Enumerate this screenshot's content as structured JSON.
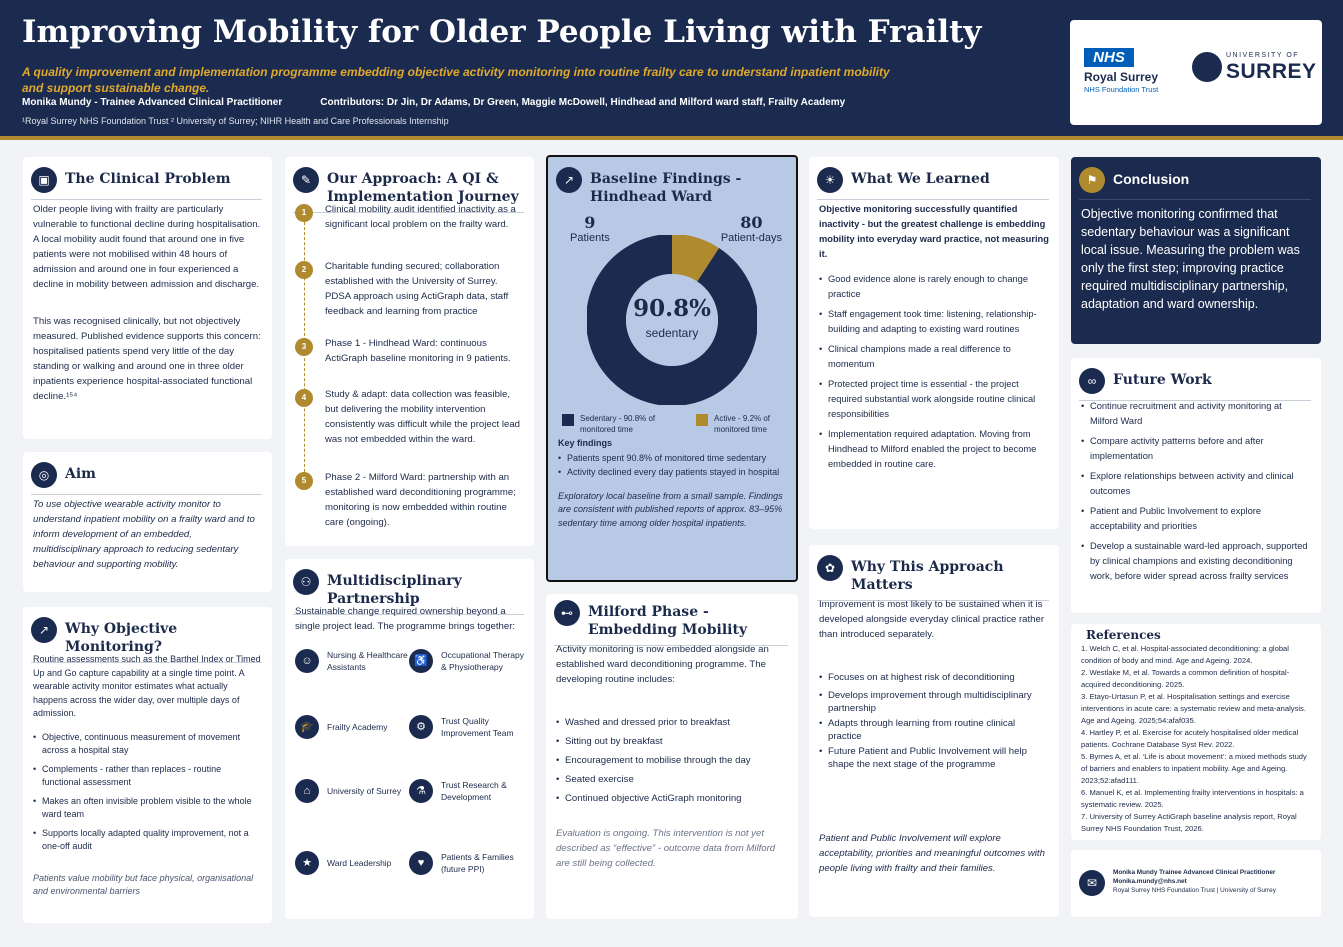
{
  "header": {
    "title": "Improving Mobility for Older People Living with Frailty",
    "subtitle": "A quality improvement and implementation programme embedding objective activity monitoring into routine frailty care to understand inpatient mobility and support sustainable change.",
    "author": "Monika Mundy - Trainee Advanced Clinical Practitioner",
    "contributors": "Contributors: Dr Jin, Dr Adams, Dr Green, Maggie McDowell, Hindhead and Milford ward staff, Frailty Academy",
    "affiliations": "¹Royal Surrey NHS Foundation Trust    ² University of Surrey;  NIHR Health and Care Professionals Internship",
    "logos": {
      "nhs_badge": "NHS",
      "nhs_name": "Royal Surrey",
      "nhs_trust": "NHS Foundation Trust",
      "uni_of": "UNIVERSITY OF",
      "uni_name": "SURREY"
    }
  },
  "clinical_problem": {
    "title": "The Clinical Problem",
    "p1": "Older people living with frailty are particularly vulnerable to functional decline during hospitalisation. A local mobility audit found that around one in five patients were not mobilised within 48 hours of admission and around one in four experienced a decline in mobility between admission and discharge.",
    "p2": "This was recognised clinically, but not objectively measured. Published evidence supports this concern: hospitalised patients spend very little of the day standing or walking and around one in three older inpatients experience hospital-associated functional decline.¹⁵⁴"
  },
  "aim": {
    "title": "Aim",
    "text": "To use objective wearable activity monitor to understand inpatient mobility on a frailty ward and to inform development of an embedded, multidisciplinary approach to reducing sedentary behaviour and supporting mobility."
  },
  "why_monitoring": {
    "title": "Why Objective Monitoring?",
    "intro": "Routine assessments such as the Barthel Index or Timed Up and Go capture capability at a single time point. A wearable activity monitor estimates what actually happens across the wider day, over multiple days of admission.",
    "bullets": [
      "Objective, continuous measurement of movement across a hospital stay",
      "Complements - rather than replaces - routine functional assessment",
      "Makes an often invisible problem visible to the whole ward team",
      "Supports locally adapted quality improvement, not a one-off audit"
    ],
    "footer": "Patients value mobility but face physical, organisational and environmental barriers"
  },
  "approach": {
    "title": "Our Approach: A QI & Implementation Journey",
    "steps": [
      {
        "num": "1",
        "text": "Clinical mobility audit identified inactivity as a significant local problem on the frailty ward."
      },
      {
        "num": "2",
        "text": "Charitable funding secured; collaboration established with the University of Surrey. PDSA approach using ActiGraph data, staff feedback and learning from practice"
      },
      {
        "num": "3",
        "text": "Phase 1 - Hindhead Ward: continuous ActiGraph baseline monitoring in 9 patients."
      },
      {
        "num": "4",
        "text": "Study & adapt: data collection was feasible, but delivering the mobility intervention consistently was difficult while the project lead was not embedded within the ward."
      },
      {
        "num": "5",
        "text": "Phase 2 - Milford Ward: partnership with an established ward deconditioning programme; monitoring is now embedded within routine care (ongoing)."
      }
    ]
  },
  "partnership": {
    "title": "Multidisciplinary Partnership",
    "intro": "Sustainable change required ownership beyond a single project lead. The programme brings together:",
    "partners": [
      {
        "label": "Nursing & Healthcare Assistants",
        "icon": "nursing-icon",
        "glyph": "☺"
      },
      {
        "label": "Occupational Therapy & Physiotherapy",
        "icon": "therapy-icon",
        "glyph": "♿"
      },
      {
        "label": "Frailty Academy",
        "icon": "academy-icon",
        "glyph": "🎓"
      },
      {
        "label": "Trust Quality Improvement Team",
        "icon": "quality-icon",
        "glyph": "⚙"
      },
      {
        "label": "University of Surrey",
        "icon": "university-icon",
        "glyph": "⌂"
      },
      {
        "label": "Trust Research & Development",
        "icon": "research-icon",
        "glyph": "⚗"
      },
      {
        "label": "Ward Leadership",
        "icon": "leadership-icon",
        "glyph": "★"
      },
      {
        "label": "Patients & Families (future PPI)",
        "icon": "family-icon",
        "glyph": "♥"
      }
    ]
  },
  "baseline": {
    "title": "Baseline Findings - Hindhead Ward",
    "patients_num": "9",
    "patients_label": "Patients",
    "days_num": "80",
    "days_label": "Patient-days",
    "center_value": "90.8%",
    "center_label": "sedentary",
    "legend_sedentary": "Sedentary - 90.8% of monitored time",
    "legend_active": "Active - 9.2% of monitored time",
    "key_title": "Key findings",
    "key_bullets": [
      "Patients spent 90.8% of monitored time sedentary",
      "Activity declined every day patients stayed in hospital"
    ],
    "note": "Exploratory local baseline from a small sample. Findings are consistent with published reports of approx. 83–95% sedentary time among older hospital inpatients.",
    "colors": {
      "sedentary": "#1b2b4f",
      "active": "#b08a2e"
    }
  },
  "chart_data": {
    "type": "pie",
    "categories": [
      "Sedentary",
      "Active"
    ],
    "values": [
      90.8,
      9.2
    ],
    "title": "",
    "colors": [
      "#1b2b4f",
      "#b08a2e"
    ]
  },
  "milford": {
    "title": "Milford Phase - Embedding Mobility",
    "intro": "Activity monitoring is now embedded alongside an established ward deconditioning programme. The developing routine includes:",
    "bullets": [
      "Washed and dressed prior to breakfast",
      "Sitting out by breakfast",
      "Encouragement to mobilise through the day",
      "Seated exercise",
      "Continued objective ActiGraph monitoring"
    ],
    "footer": "Evaluation is ongoing. This intervention is not yet described as “effective” - outcome data from Milford are still being collected."
  },
  "learned": {
    "title": "What We Learned",
    "intro": "Objective monitoring successfully quantified inactivity -  but the greatest challenge is embedding mobility into everyday ward practice, not measuring it.",
    "bullets": [
      "Good evidence alone is rarely enough to change practice",
      "Staff engagement took time: listening, relationship-building and adapting to existing ward routines",
      "Clinical champions made a real difference to momentum",
      "Protected project time is essential - the project required substantial work alongside routine clinical responsibilities",
      "Implementation required adaptation. Moving from Hindhead to Milford enabled the project to become embedded in routine care."
    ]
  },
  "why_matters": {
    "title": "Why This Approach Matters",
    "intro": "Improvement is most likely to be sustained when it is developed alongside everyday clinical practice rather than introduced separately.",
    "bullets": [
      "Focuses on at highest risk of deconditioning",
      "Develops improvement through multidisciplinary partnership",
      "Adapts through learning from routine clinical practice",
      "Future Patient and Public Involvement will help shape the next stage of the programme"
    ],
    "footer": "Patient and Public Involvement will explore acceptability, priorities and meaningful outcomes with people living with frailty and their families."
  },
  "conclusion": {
    "title": "Conclusion",
    "text": "Objective monitoring confirmed that sedentary behaviour was a significant local issue. Measuring the problem was only the first step; improving practice required multidisciplinary partnership, adaptation and ward ownership."
  },
  "future": {
    "title": "Future Work",
    "bullets": [
      "Continue recruitment and activity monitoring at Milford Ward",
      "Compare activity patterns before and after implementation",
      "Explore relationships between activity and clinical outcomes",
      "Patient and Public Involvement to explore acceptability and priorities",
      "Develop a sustainable ward-led approach, supported by clinical champions and existing deconditioning work, before wider spread across frailty services"
    ]
  },
  "references": {
    "title": "References",
    "items": [
      "1. Welch C, et al. Hospital-associated deconditioning: a global condition of body and mind. Age and Ageing. 2024.",
      "2. Westlake M, et al. Towards a common definition of hospital-acquired deconditioning. 2025.",
      "3. Etayo-Urtasun P, et al. Hospitalisation settings and exercise interventions in acute care: a systematic review and meta-analysis. Age and Ageing. 2025;54:afaf035.",
      "4. Hartley P, et al. Exercise for acutely hospitalised older medical patients. Cochrane Database Syst Rev. 2022.",
      "5. Byrnes A, et al. ‘Life is about movement’: a mixed methods study of barriers and enablers to inpatient mobility. Age and Ageing. 2023;52:afad111.",
      "6. Manuel K, et al. Implementing frailty interventions in hospitals: a systematic review. 2025.",
      "7. University of Surrey ActiGraph baseline analysis report, Royal Surrey NHS Foundation Trust, 2026."
    ]
  },
  "contact": {
    "name": "Monika Mundy  Trainee Advanced Clinical Practitioner",
    "email": "Monika.mundy@nhs.net",
    "org": "Royal Surrey NHS Foundation Trust  |  University of Surrey"
  }
}
